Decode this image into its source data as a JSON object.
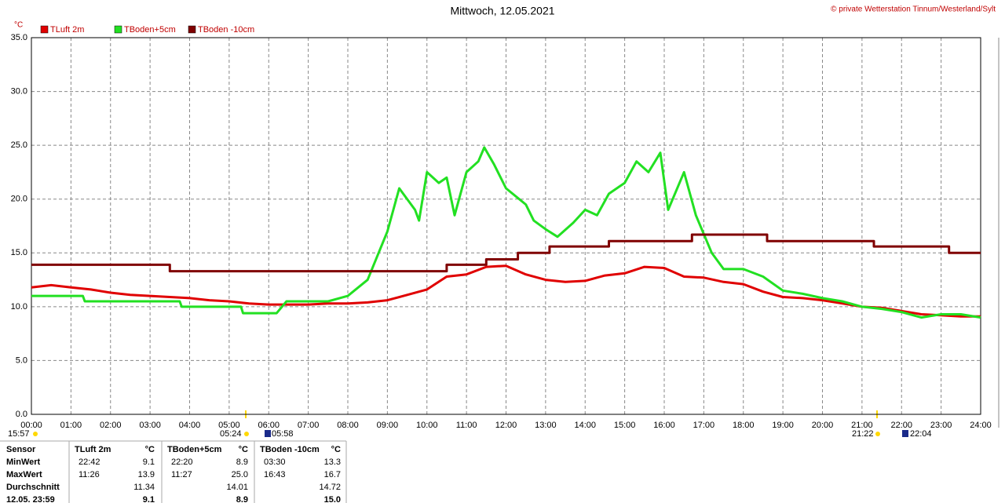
{
  "chart_data": {
    "type": "line",
    "title": "Mittwoch, 12.05.2021",
    "credit": "© private Wetterstation Tinnum/Westerland/Sylt",
    "y_label": "°C",
    "xlim": [
      0,
      24
    ],
    "ylim": [
      0,
      35
    ],
    "grid": true,
    "xticks": [
      {
        "value": 0,
        "label": "00:00"
      },
      {
        "value": 1,
        "label": "01:00"
      },
      {
        "value": 2,
        "label": "02:00"
      },
      {
        "value": 3,
        "label": "03:00"
      },
      {
        "value": 4,
        "label": "04:00"
      },
      {
        "value": 5,
        "label": "05:00"
      },
      {
        "value": 6,
        "label": "06:00"
      },
      {
        "value": 7,
        "label": "07:00"
      },
      {
        "value": 8,
        "label": "08:00"
      },
      {
        "value": 9,
        "label": "09:00"
      },
      {
        "value": 10,
        "label": "10:00"
      },
      {
        "value": 11,
        "label": "11:00"
      },
      {
        "value": 12,
        "label": "12:00"
      },
      {
        "value": 13,
        "label": "13:00"
      },
      {
        "value": 14,
        "label": "14:00"
      },
      {
        "value": 15,
        "label": "15:00"
      },
      {
        "value": 16,
        "label": "16:00"
      },
      {
        "value": 17,
        "label": "17:00"
      },
      {
        "value": 18,
        "label": "18:00"
      },
      {
        "value": 19,
        "label": "19:00"
      },
      {
        "value": 20,
        "label": "20:00"
      },
      {
        "value": 21,
        "label": "21:00"
      },
      {
        "value": 22,
        "label": "22:00"
      },
      {
        "value": 23,
        "label": "23:00"
      },
      {
        "value": 24,
        "label": "24:00"
      }
    ],
    "yticks": [
      {
        "value": 0,
        "label": "0.0"
      },
      {
        "value": 5,
        "label": "5.0"
      },
      {
        "value": 10,
        "label": "10.0"
      },
      {
        "value": 15,
        "label": "15.0"
      },
      {
        "value": 20,
        "label": "20.0"
      },
      {
        "value": 25,
        "label": "25.0"
      },
      {
        "value": 30,
        "label": "30.0"
      },
      {
        "value": 35,
        "label": "35.0"
      }
    ],
    "series": [
      {
        "name": "TLuft 2m",
        "color": "#e00000",
        "x": [
          0,
          0.5,
          1,
          1.5,
          2,
          2.5,
          3,
          3.5,
          4,
          4.5,
          5,
          5.5,
          6,
          6.5,
          7,
          7.5,
          8,
          8.5,
          9,
          9.5,
          10,
          10.5,
          11,
          11.5,
          12,
          12.5,
          13,
          13.5,
          14,
          14.5,
          15,
          15.5,
          16,
          16.5,
          17,
          17.5,
          18,
          18.5,
          19,
          19.5,
          20,
          20.5,
          21,
          21.5,
          22,
          22.5,
          23,
          23.5,
          24
        ],
        "values": [
          11.8,
          12.0,
          11.8,
          11.6,
          11.3,
          11.1,
          11.0,
          10.9,
          10.8,
          10.6,
          10.5,
          10.3,
          10.2,
          10.2,
          10.2,
          10.3,
          10.3,
          10.4,
          10.6,
          11.1,
          11.6,
          12.8,
          13.0,
          13.7,
          13.8,
          13.0,
          12.5,
          12.3,
          12.4,
          12.9,
          13.1,
          13.7,
          13.6,
          12.8,
          12.7,
          12.3,
          12.1,
          11.4,
          10.9,
          10.8,
          10.6,
          10.3,
          10.0,
          9.9,
          9.6,
          9.3,
          9.2,
          9.1,
          9.1
        ]
      },
      {
        "name": "TBoden+5cm",
        "color": "#22e022",
        "x": [
          0,
          1.3,
          1.35,
          3.75,
          3.8,
          5.3,
          5.35,
          6.2,
          6.45,
          7.5,
          8,
          8.5,
          9,
          9.3,
          9.7,
          9.8,
          10,
          10.3,
          10.5,
          10.7,
          11,
          11.3,
          11.45,
          11.7,
          12,
          12.5,
          12.7,
          13,
          13.3,
          13.7,
          14,
          14.3,
          14.6,
          15,
          15.3,
          15.6,
          15.9,
          16.1,
          16.5,
          16.8,
          17.2,
          17.5,
          18,
          18.5,
          19,
          19.5,
          20,
          20.5,
          21,
          21.5,
          22,
          22.5,
          23,
          23.5,
          24
        ],
        "values": [
          11.0,
          11.0,
          10.5,
          10.5,
          10.0,
          10.0,
          9.4,
          9.4,
          10.5,
          10.5,
          11.0,
          12.5,
          17.0,
          21.0,
          19.0,
          18.0,
          22.5,
          21.5,
          22.0,
          18.5,
          22.5,
          23.5,
          24.8,
          23.2,
          21.0,
          19.5,
          18.0,
          17.2,
          16.5,
          17.8,
          19.0,
          18.5,
          20.5,
          21.5,
          23.5,
          22.5,
          24.3,
          19.0,
          22.5,
          18.5,
          15.0,
          13.5,
          13.5,
          12.8,
          11.5,
          11.2,
          10.8,
          10.5,
          10.0,
          9.8,
          9.5,
          9.0,
          9.3,
          9.3,
          9.0
        ]
      },
      {
        "name": "TBoden -10cm",
        "color": "#800000",
        "x": [
          0,
          3.5,
          3.5,
          10.5,
          10.5,
          11.5,
          11.5,
          12.3,
          12.3,
          13.1,
          13.1,
          14.6,
          14.6,
          16.7,
          16.7,
          18.6,
          18.6,
          21.3,
          21.3,
          23.2,
          23.2,
          24
        ],
        "values": [
          13.9,
          13.9,
          13.3,
          13.3,
          13.9,
          13.9,
          14.4,
          14.4,
          15.0,
          15.0,
          15.6,
          15.6,
          16.1,
          16.1,
          16.7,
          16.7,
          16.1,
          16.1,
          15.6,
          15.6,
          15.0,
          15.0
        ]
      }
    ],
    "sun_times": [
      "15:57",
      "05:24",
      "05:58",
      "21:22",
      "22:04"
    ]
  },
  "table": {
    "header": [
      "Sensor",
      "TLuft 2m",
      "°C",
      "TBoden+5cm",
      "°C",
      "TBoden -10cm",
      "°C"
    ],
    "rows": [
      [
        "MinWert",
        "22:42",
        "9.1",
        "22:20",
        "8.9",
        "03:30",
        "13.3"
      ],
      [
        "MaxWert",
        "11:26",
        "13.9",
        "11:27",
        "25.0",
        "16:43",
        "16.7"
      ],
      [
        "Durchschnitt",
        null,
        "11.34",
        null,
        "14.01",
        null,
        "14.72"
      ],
      [
        "12.05. 23:59",
        null,
        "9.1",
        null,
        "8.9",
        null,
        "15.0"
      ]
    ]
  }
}
